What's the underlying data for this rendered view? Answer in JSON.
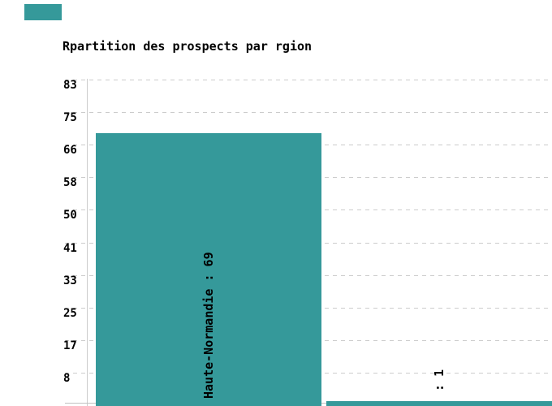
{
  "chart_data": {
    "type": "bar",
    "title": "Rpartition des prospects par rgion",
    "categories": [
      "Haute-Normandie",
      ""
    ],
    "values": [
      69,
      1
    ],
    "bar_labels": [
      "Haute-Normandie : 69",
      " : 1"
    ],
    "yticks": [
      "83",
      "75",
      "66",
      "58",
      "50",
      "41",
      "33",
      "25",
      "17",
      "8"
    ],
    "ylim": [
      0,
      82.8
    ],
    "xlabel": "",
    "ylabel": "",
    "grid": "horizontal-dashed",
    "legend_position": "top-left",
    "colors": {
      "bar": "#35999A",
      "grid": "#cccccc",
      "baseline": "#c2c2c2",
      "text": "#000000"
    }
  }
}
